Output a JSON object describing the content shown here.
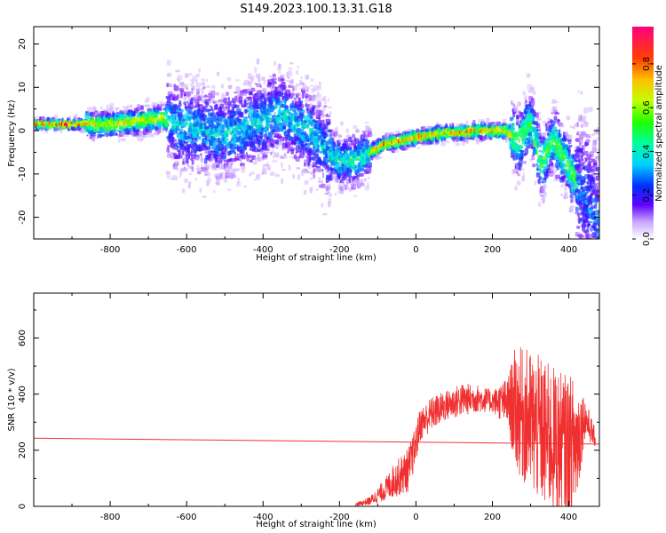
{
  "title": "S149.2023.100.13.31.G18",
  "colors": {
    "snr_line": "#f03030",
    "background": "#ffffff",
    "axis": "#000000"
  },
  "chart_data": [
    {
      "type": "heatmap",
      "xlabel": "Height of straight line (km)",
      "ylabel": "Frequency (Hz)",
      "xlim": [
        -1000,
        480
      ],
      "ylim": [
        -25,
        24
      ],
      "xticks": [
        -800,
        -600,
        -400,
        -200,
        0,
        200,
        400
      ],
      "yticks": [
        -20,
        -10,
        0,
        10,
        20
      ],
      "colorbar": {
        "label": "Normalized spectral amplitude",
        "ticks": [
          0.0,
          0.2,
          0.4,
          0.6,
          0.8
        ],
        "tick_labels": [
          "0.0",
          "0.2",
          "0.4",
          "0.6",
          "0.8"
        ],
        "range": [
          0,
          0.97
        ]
      },
      "ridge": {
        "x": [
          -1000,
          -860,
          -800,
          -750,
          -700,
          -660,
          -620,
          -560,
          -500,
          -440,
          -400,
          -360,
          -320,
          -280,
          -240,
          -200,
          -160,
          -120,
          -80,
          -40,
          0,
          40,
          80,
          120,
          160,
          200,
          240,
          270,
          300,
          330,
          360,
          400,
          440,
          480
        ],
        "y": [
          1.5,
          1.5,
          1.3,
          2.0,
          2.5,
          3.0,
          1.0,
          0.0,
          -1.0,
          1.0,
          2.0,
          4.0,
          2.0,
          0.0,
          -4.0,
          -7.0,
          -7.0,
          -5.0,
          -3.0,
          -2.5,
          -1.5,
          -1.0,
          -0.5,
          -0.5,
          0.0,
          0.0,
          0.0,
          -3.0,
          2.0,
          -8.0,
          -2.0,
          -8.0,
          -15.0,
          -22.0
        ]
      }
    },
    {
      "type": "line",
      "xlabel": "Height of straight line (km)",
      "ylabel": "SNR (10 * v/v)",
      "xlim": [
        -1000,
        480
      ],
      "ylim": [
        0,
        760
      ],
      "xticks": [
        -800,
        -600,
        -400,
        -200,
        0,
        200,
        400
      ],
      "yticks": [
        0,
        200,
        400,
        600
      ],
      "series": [
        {
          "x": [
            -160,
            -120,
            -80,
            -60,
            -20,
            0,
            10,
            40,
            80,
            120,
            160,
            200,
            240,
            260,
            300,
            340,
            380,
            420,
            440,
            470
          ],
          "y": [
            5,
            20,
            60,
            90,
            130,
            220,
            290,
            330,
            360,
            380,
            385,
            375,
            370,
            350,
            300,
            250,
            220,
            220,
            320,
            240
          ],
          "spread": [
            5,
            15,
            40,
            60,
            80,
            70,
            60,
            60,
            55,
            60,
            50,
            40,
            90,
            220,
            260,
            270,
            260,
            240,
            80,
            30
          ]
        },
        {
          "x": [
            -1000,
            480
          ],
          "y": [
            243,
            222
          ]
        }
      ]
    }
  ]
}
